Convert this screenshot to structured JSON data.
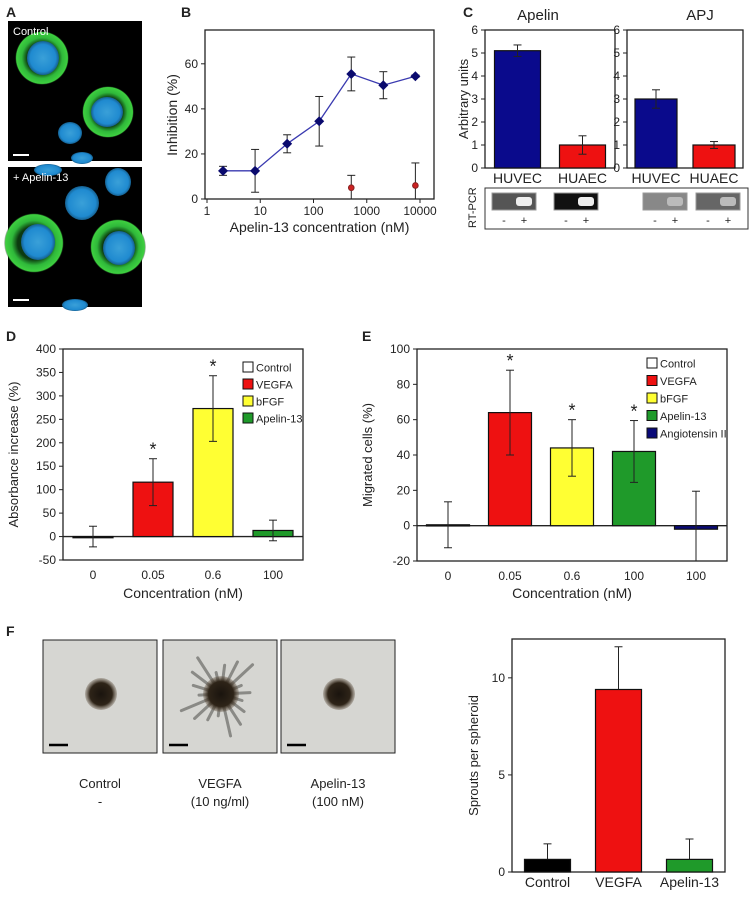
{
  "panels": {
    "A": "A",
    "B": "B",
    "C": "C",
    "D": "D",
    "E": "E",
    "F": "F"
  },
  "panel_a": {
    "top_label": "Control",
    "bottom_label": "+ Apelin-13"
  },
  "rtpcr": {
    "label": "RT-PCR",
    "lanes": [
      "-",
      "+"
    ]
  },
  "panel_f_images": [
    {
      "line1": "Control",
      "line2": "-"
    },
    {
      "line1": "VEGFA",
      "line2": "(10 ng/ml)"
    },
    {
      "line1": "Apelin-13",
      "line2": "(100 nM)"
    }
  ],
  "colors": {
    "navy": "#0a0a78",
    "red": "#ee1111",
    "yellow": "#ffff33",
    "green": "#1f9a2a",
    "black": "#000000",
    "white": "#ffffff"
  },
  "chart_data": [
    {
      "panel": "B",
      "type": "line",
      "xscale": "log",
      "xlim": [
        1,
        10000
      ],
      "ylim": [
        0,
        75
      ],
      "xticks": [
        1,
        10,
        100,
        1000,
        10000
      ],
      "yticks": [
        0,
        20,
        40,
        60
      ],
      "xlabel": "Apelin-13 concentration (nM)",
      "ylabel": "Inhibition (%)",
      "grid": false,
      "series": [
        {
          "x": [
            2,
            8,
            32,
            128,
            512,
            2048,
            8192
          ],
          "y": [
            12.5,
            12.5,
            24.5,
            34.5,
            55.5,
            50.5,
            54.5
          ],
          "err": [
            2,
            9.5,
            4,
            11,
            7.5,
            6,
            0.5
          ],
          "color": "#0a0a6e",
          "marker": "diamond",
          "line": true
        },
        {
          "x": [
            512,
            8192
          ],
          "y": [
            5,
            6
          ],
          "err": [
            5.5,
            10
          ],
          "color": "#cc2222",
          "marker": "circle",
          "line": false
        }
      ]
    },
    {
      "panel": "C",
      "type": "bar",
      "title": "Apelin",
      "ylabel": "Arbitrary units",
      "xlabel": "",
      "categories": [
        "HUVEC",
        "HUAEC"
      ],
      "values": [
        5.1,
        1.0
      ],
      "errors": [
        0.25,
        0.4
      ],
      "colors": [
        "#0a0a8c",
        "#ee1111"
      ],
      "ylim": [
        0,
        6
      ],
      "yticks": [
        0,
        1,
        2,
        3,
        4,
        5,
        6
      ],
      "error_style": "both"
    },
    {
      "panel": "C",
      "type": "bar",
      "title": "APJ",
      "ylabel": "",
      "xlabel": "",
      "categories": [
        "HUVEC",
        "HUAEC"
      ],
      "values": [
        3.0,
        1.0
      ],
      "errors": [
        0.4,
        0.15
      ],
      "colors": [
        "#0a0a8c",
        "#ee1111"
      ],
      "ylim": [
        0,
        6
      ],
      "yticks": [
        0,
        1,
        2,
        3,
        4,
        5,
        6
      ],
      "error_style": "both"
    },
    {
      "panel": "D",
      "type": "bar",
      "ylabel": "Absorbance increase (%)",
      "xlabel": "Concentration (nM)",
      "categories": [
        "0",
        "0.05",
        "0.6",
        "100"
      ],
      "values": [
        0,
        116,
        273,
        13
      ],
      "errors": [
        22,
        50,
        70,
        22
      ],
      "colors": [
        "#ffffff",
        "#ee1111",
        "#ffff33",
        "#1f9a2a"
      ],
      "significant": [
        false,
        true,
        true,
        false
      ],
      "ylim": [
        -50,
        400
      ],
      "yticks": [
        -50,
        0,
        50,
        100,
        150,
        200,
        250,
        300,
        350,
        400
      ],
      "error_style": "both",
      "legend": {
        "position": "top-right",
        "items": [
          {
            "label": "Control",
            "color": "#ffffff"
          },
          {
            "label": "VEGFA",
            "color": "#ee1111"
          },
          {
            "label": "bFGF",
            "color": "#ffff33"
          },
          {
            "label": "Apelin-13",
            "color": "#1f9a2a"
          }
        ]
      }
    },
    {
      "panel": "E",
      "type": "bar",
      "ylabel": "Migrated cells (%)",
      "xlabel": "Concentration (nM)",
      "categories": [
        "0",
        "0.05",
        "0.6",
        "100",
        "100"
      ],
      "values": [
        0.5,
        64,
        44,
        42,
        -2
      ],
      "errors": [
        13,
        24,
        16,
        17.5,
        21.5
      ],
      "colors": [
        "#ffffff",
        "#ee1111",
        "#ffff33",
        "#1f9a2a",
        "#0a0a78"
      ],
      "significant": [
        false,
        true,
        true,
        true,
        false
      ],
      "ylim": [
        -20,
        100
      ],
      "yticks": [
        -20,
        0,
        20,
        40,
        60,
        80,
        100
      ],
      "error_style": "both",
      "legend": {
        "position": "top-right",
        "items": [
          {
            "label": "Control",
            "color": "#ffffff"
          },
          {
            "label": "VEGFA",
            "color": "#ee1111"
          },
          {
            "label": "bFGF",
            "color": "#ffff33"
          },
          {
            "label": "Apelin-13",
            "color": "#1f9a2a"
          },
          {
            "label": "Angiotensin II",
            "color": "#0a0a78"
          }
        ]
      }
    },
    {
      "panel": "F",
      "type": "bar",
      "ylabel": "Sprouts per spheroid",
      "xlabel": "",
      "categories": [
        "Control",
        "VEGFA",
        "Apelin-13"
      ],
      "values": [
        0.65,
        9.4,
        0.65
      ],
      "errors": [
        0.8,
        2.2,
        1.05
      ],
      "colors": [
        "#000000",
        "#ee1111",
        "#1f9a2a"
      ],
      "ylim": [
        0,
        12
      ],
      "yticks": [
        0,
        5,
        10
      ],
      "error_style": "upper"
    }
  ]
}
